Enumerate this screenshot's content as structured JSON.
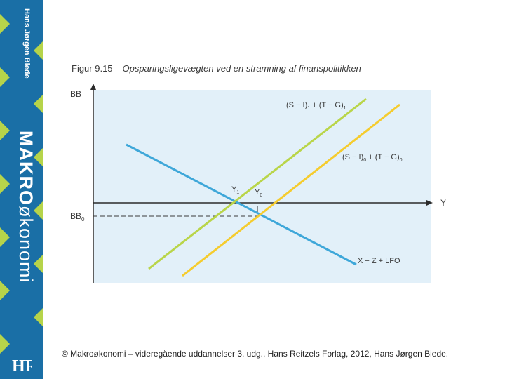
{
  "sidebar": {
    "author": "Hans Jørgen Biede",
    "title_bold": "MAKRO",
    "title_rest": "økonomi",
    "publisher_logo": "HR",
    "colors": {
      "background": "#1a6fa6",
      "diamonds": "#b6d44a"
    }
  },
  "figure": {
    "number": "Figur 9.15",
    "title": "Opsparingsligevægten ved en stramning af finanspolitikken"
  },
  "diagram": {
    "y_axis_label": "BB",
    "x_axis_label": "Y",
    "bb0_label": "BB",
    "bb0_sub": "0",
    "y1_label": "Y",
    "y1_sub": "1",
    "y0_label": "Y",
    "y0_sub": "0",
    "curve1_label_a": "(S − I)",
    "curve1_sub_a": "1",
    "curve1_label_b": " + (T − G)",
    "curve1_sub_b": "1",
    "curve0_label_a": "(S − I)",
    "curve0_sub_a": "0",
    "curve0_label_b": " + (T − G)",
    "curve0_sub_b": "0",
    "xz_label": "X − Z + LFO",
    "colors": {
      "panel": "#e2f0f9",
      "xz_line": "#3ea7d9",
      "green_line": "#b9d549",
      "yellow_line": "#f5cc2e",
      "axis": "#2b2b2b"
    }
  },
  "footer": "© Makroøkonomi – videregående uddannelser 3. udg., Hans Reitzels Forlag, 2012, Hans Jørgen Biede."
}
